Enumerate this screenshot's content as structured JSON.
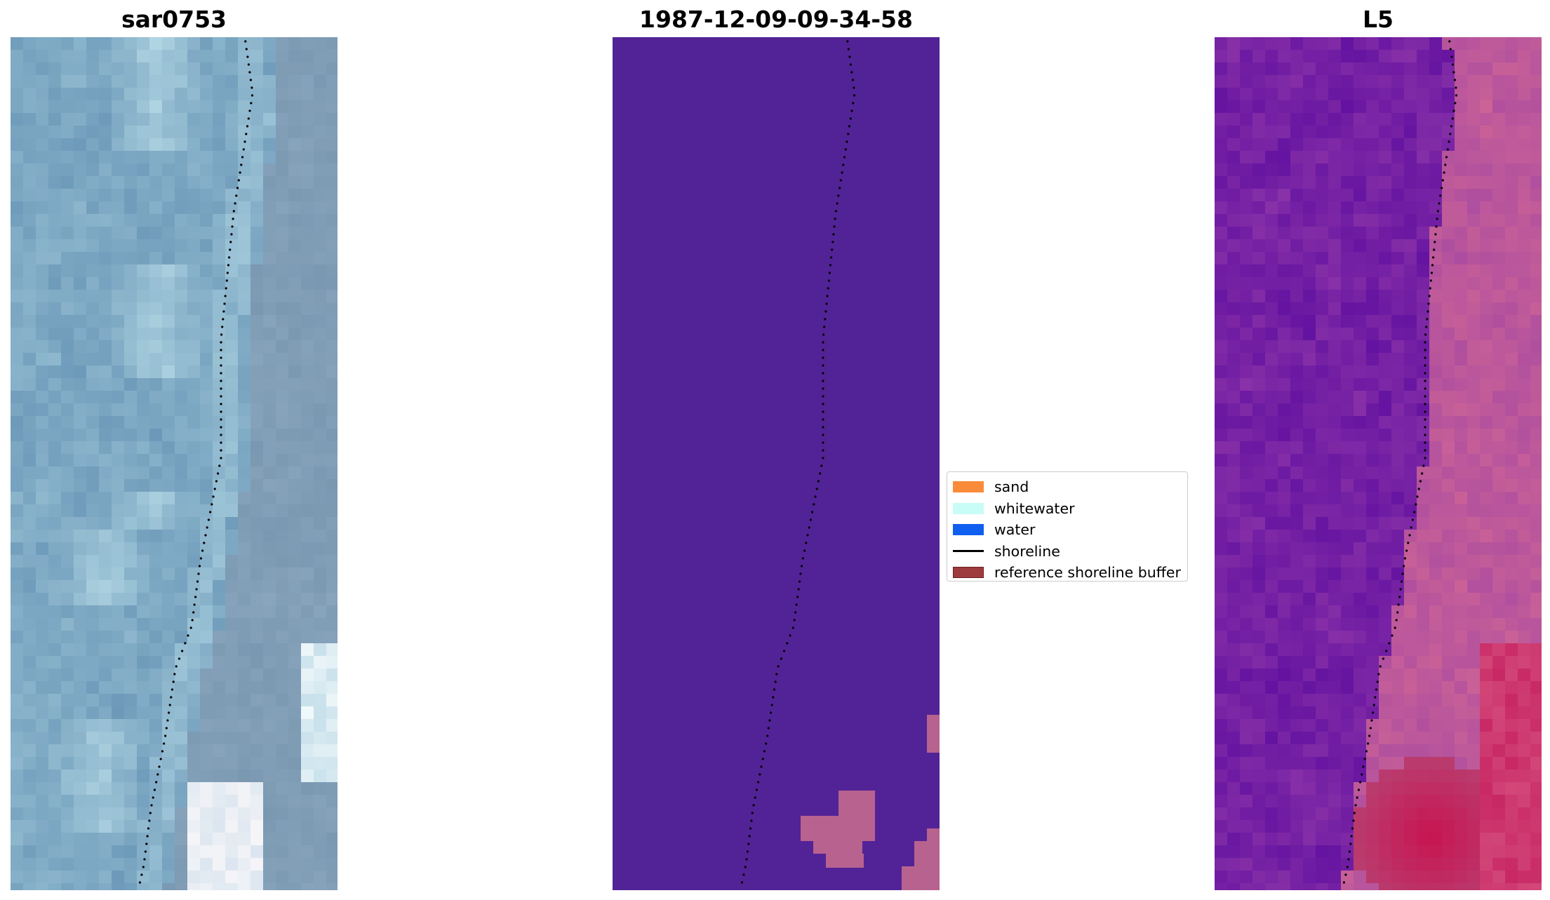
{
  "panels": [
    {
      "title": "sar0753"
    },
    {
      "title": "1987-12-09-09-34-58"
    },
    {
      "title": "L5"
    }
  ],
  "legend": {
    "items": [
      {
        "label": "sand",
        "color": "#f98b3b",
        "kind": "patch"
      },
      {
        "label": "whitewater",
        "color": "#c8fcf6",
        "kind": "patch"
      },
      {
        "label": "water",
        "color": "#0f5ff0",
        "kind": "patch"
      },
      {
        "label": "shoreline",
        "color": "#000000",
        "kind": "line"
      },
      {
        "label": "reference shoreline buffer",
        "color": "#9e3b3e",
        "kind": "patch"
      }
    ]
  },
  "colors": {
    "classified_background": "#522396",
    "buffer_blob": "#b8628f",
    "shoreline_dots": "#000000"
  }
}
